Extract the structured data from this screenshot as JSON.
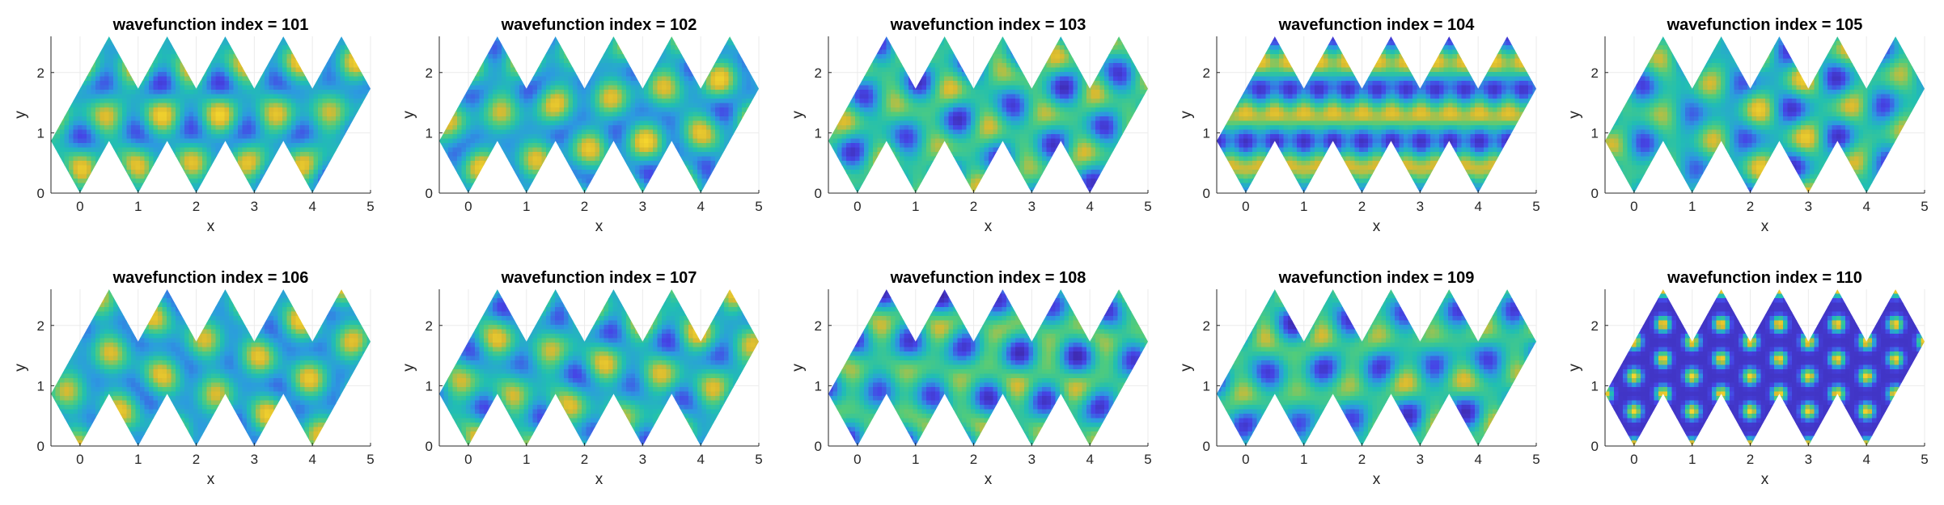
{
  "colormap": [
    "#3e26a8",
    "#4545e6",
    "#2c9ae0",
    "#21bfb1",
    "#52cc7a",
    "#d9ba30",
    "#f9d92c"
  ],
  "chart_data": [
    {
      "type": "heatmap",
      "title": "wavefunction index = 101",
      "xlabel": "x",
      "ylabel": "y",
      "xlim": [
        -0.5,
        5
      ],
      "ylim": [
        0,
        2.6
      ],
      "xticks": [
        "0",
        "1",
        "2",
        "3",
        "4",
        "5"
      ],
      "yticks": [
        "0",
        "1",
        "2"
      ],
      "grid": true,
      "pattern": "irregular"
    },
    {
      "type": "heatmap",
      "title": "wavefunction index = 102",
      "xlabel": "x",
      "ylabel": "y",
      "xlim": [
        -0.5,
        5
      ],
      "ylim": [
        0,
        2.6
      ],
      "xticks": [
        "0",
        "1",
        "2",
        "3",
        "4",
        "5"
      ],
      "yticks": [
        "0",
        "1",
        "2"
      ],
      "grid": true,
      "pattern": "irregular"
    },
    {
      "type": "heatmap",
      "title": "wavefunction index = 103",
      "xlabel": "x",
      "ylabel": "y",
      "xlim": [
        -0.5,
        5
      ],
      "ylim": [
        0,
        2.6
      ],
      "xticks": [
        "0",
        "1",
        "2",
        "3",
        "4",
        "5"
      ],
      "yticks": [
        "0",
        "1",
        "2"
      ],
      "grid": true,
      "pattern": "irregular"
    },
    {
      "type": "heatmap",
      "title": "wavefunction index = 104",
      "xlabel": "x",
      "ylabel": "y",
      "xlim": [
        -0.5,
        5
      ],
      "ylim": [
        0,
        2.6
      ],
      "xticks": [
        "0",
        "1",
        "2",
        "3",
        "4",
        "5"
      ],
      "yticks": [
        "0",
        "1",
        "2"
      ],
      "grid": true,
      "pattern": "horizontal-stripes"
    },
    {
      "type": "heatmap",
      "title": "wavefunction index = 105",
      "xlabel": "x",
      "ylabel": "y",
      "xlim": [
        -0.5,
        5
      ],
      "ylim": [
        0,
        2.6
      ],
      "xticks": [
        "0",
        "1",
        "2",
        "3",
        "4",
        "5"
      ],
      "yticks": [
        "0",
        "1",
        "2"
      ],
      "grid": true,
      "pattern": "irregular"
    },
    {
      "type": "heatmap",
      "title": "wavefunction index = 106",
      "xlabel": "x",
      "ylabel": "y",
      "xlim": [
        -0.5,
        5
      ],
      "ylim": [
        0,
        2.6
      ],
      "xticks": [
        "0",
        "1",
        "2",
        "3",
        "4",
        "5"
      ],
      "yticks": [
        "0",
        "1",
        "2"
      ],
      "grid": true,
      "pattern": "irregular"
    },
    {
      "type": "heatmap",
      "title": "wavefunction index = 107",
      "xlabel": "x",
      "ylabel": "y",
      "xlim": [
        -0.5,
        5
      ],
      "ylim": [
        0,
        2.6
      ],
      "xticks": [
        "0",
        "1",
        "2",
        "3",
        "4",
        "5"
      ],
      "yticks": [
        "0",
        "1",
        "2"
      ],
      "grid": true,
      "pattern": "irregular"
    },
    {
      "type": "heatmap",
      "title": "wavefunction index = 108",
      "xlabel": "x",
      "ylabel": "y",
      "xlim": [
        -0.5,
        5
      ],
      "ylim": [
        0,
        2.6
      ],
      "xticks": [
        "0",
        "1",
        "2",
        "3",
        "4",
        "5"
      ],
      "yticks": [
        "0",
        "1",
        "2"
      ],
      "grid": true,
      "pattern": "irregular"
    },
    {
      "type": "heatmap",
      "title": "wavefunction index = 109",
      "xlabel": "x",
      "ylabel": "y",
      "xlim": [
        -0.5,
        5
      ],
      "ylim": [
        0,
        2.6
      ],
      "xticks": [
        "0",
        "1",
        "2",
        "3",
        "4",
        "5"
      ],
      "yticks": [
        "0",
        "1",
        "2"
      ],
      "grid": true,
      "pattern": "irregular"
    },
    {
      "type": "heatmap",
      "title": "wavefunction index = 110",
      "xlabel": "x",
      "ylabel": "y",
      "xlim": [
        -0.5,
        5
      ],
      "ylim": [
        0,
        2.6
      ],
      "xticks": [
        "0",
        "1",
        "2",
        "3",
        "4",
        "5"
      ],
      "yticks": [
        "0",
        "1",
        "2"
      ],
      "grid": true,
      "pattern": "hexagonal-lattice"
    }
  ]
}
